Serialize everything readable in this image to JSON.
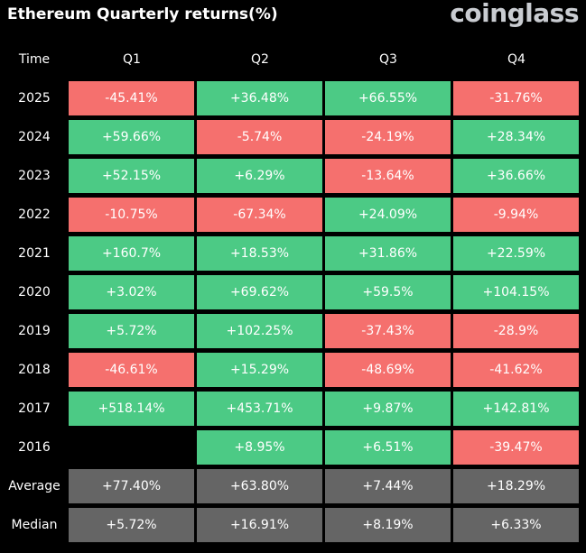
{
  "header": {
    "title": "Ethereum Quarterly returns(%)",
    "brand": "coinglass"
  },
  "colors": {
    "positive": "#4cca85",
    "negative": "#f5706e",
    "summary": "#656565",
    "background": "#000000"
  },
  "chart_data": {
    "type": "table",
    "corner_label": "Time",
    "columns": [
      "Q1",
      "Q2",
      "Q3",
      "Q4"
    ],
    "rows": [
      {
        "label": "2025",
        "cells": [
          "-45.41%",
          "+36.48%",
          "+66.55%",
          "-31.76%"
        ]
      },
      {
        "label": "2024",
        "cells": [
          "+59.66%",
          "-5.74%",
          "-24.19%",
          "+28.34%"
        ]
      },
      {
        "label": "2023",
        "cells": [
          "+52.15%",
          "+6.29%",
          "-13.64%",
          "+36.66%"
        ]
      },
      {
        "label": "2022",
        "cells": [
          "-10.75%",
          "-67.34%",
          "+24.09%",
          "-9.94%"
        ]
      },
      {
        "label": "2021",
        "cells": [
          "+160.7%",
          "+18.53%",
          "+31.86%",
          "+22.59%"
        ]
      },
      {
        "label": "2020",
        "cells": [
          "+3.02%",
          "+69.62%",
          "+59.5%",
          "+104.15%"
        ]
      },
      {
        "label": "2019",
        "cells": [
          "+5.72%",
          "+102.25%",
          "-37.43%",
          "-28.9%"
        ]
      },
      {
        "label": "2018",
        "cells": [
          "-46.61%",
          "+15.29%",
          "-48.69%",
          "-41.62%"
        ]
      },
      {
        "label": "2017",
        "cells": [
          "+518.14%",
          "+453.71%",
          "+9.87%",
          "+142.81%"
        ]
      },
      {
        "label": "2016",
        "cells": [
          "",
          "+8.95%",
          "+6.51%",
          "-39.47%"
        ]
      }
    ],
    "summary_rows": [
      {
        "label": "Average",
        "cells": [
          "+77.40%",
          "+63.80%",
          "+7.44%",
          "+18.29%"
        ]
      },
      {
        "label": "Median",
        "cells": [
          "+5.72%",
          "+16.91%",
          "+8.19%",
          "+6.33%"
        ]
      }
    ]
  }
}
